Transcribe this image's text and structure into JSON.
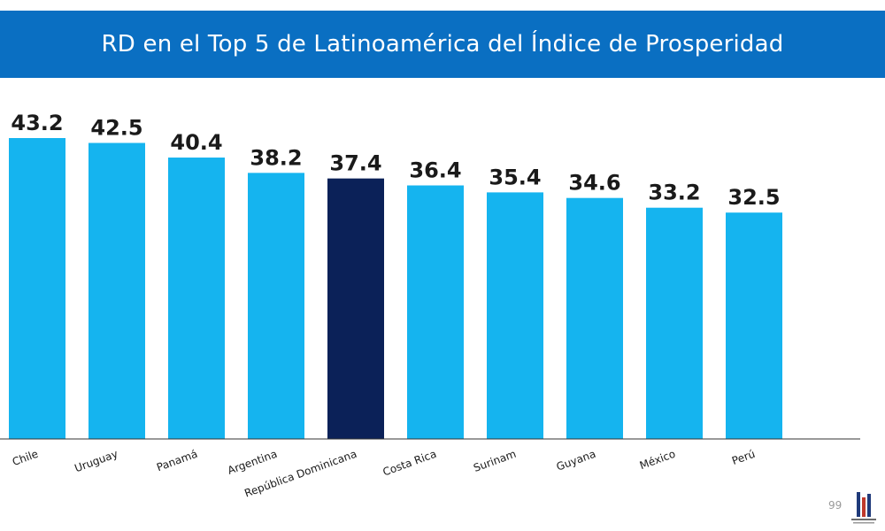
{
  "header": {
    "title": "RD en el Top 5 de Latinoamérica del Índice de Prosperidad"
  },
  "footer": {
    "page_number": "99"
  },
  "colors": {
    "header_bg": "#0a6fc2",
    "bar_default": "#15b4ef",
    "bar_highlight": "#0b2158"
  },
  "chart_data": {
    "type": "bar",
    "title": "RD en el Top 5 de Latinoamérica del Índice de Prosperidad",
    "categories": [
      "Chile",
      "Uruguay",
      "Panamá",
      "Argentina",
      "República Dominicana",
      "Costa Rica",
      "Surinam",
      "Guyana",
      "México",
      "Perú"
    ],
    "values": [
      43.2,
      42.5,
      40.4,
      38.2,
      37.4,
      36.4,
      35.4,
      34.6,
      33.2,
      32.5
    ],
    "highlight": "República Dominicana",
    "data_labels": [
      "43.2",
      "42.5",
      "40.4",
      "38.2",
      "37.4",
      "36.4",
      "35.4",
      "34.6",
      "33.2",
      "32.5"
    ],
    "ylim": [
      0,
      43.2
    ],
    "grid": false,
    "legend": "none",
    "xlabel": "",
    "ylabel": ""
  }
}
